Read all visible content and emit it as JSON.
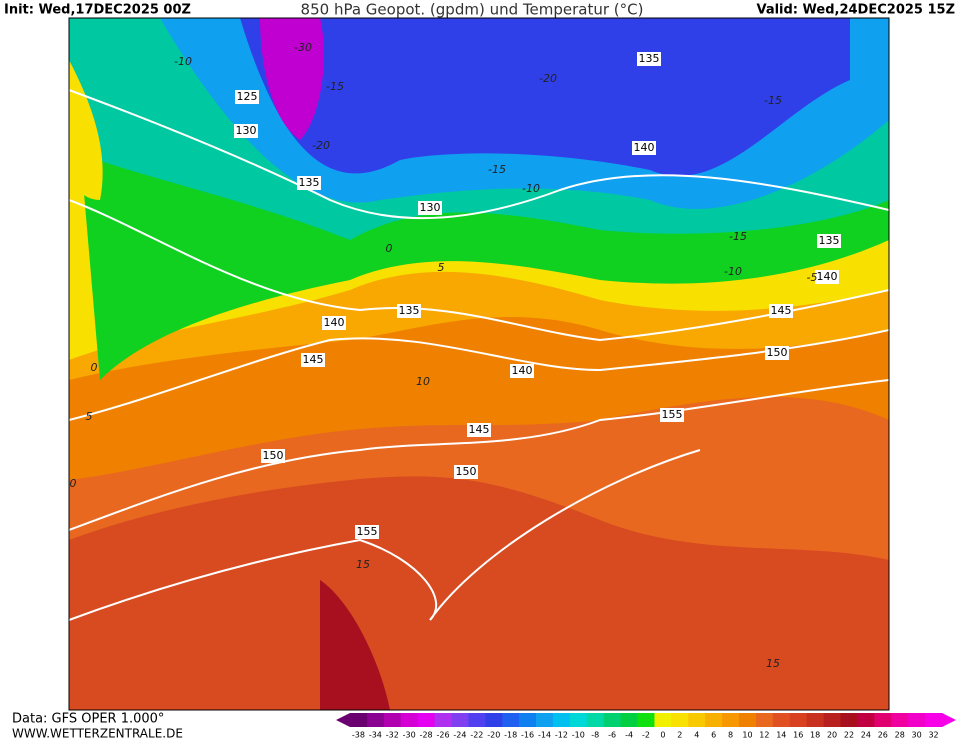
{
  "header": {
    "init": "Init: Wed,17DEC2025 00Z",
    "title": "850 hPa Geopot. (gpdm) und Temperatur (°C)",
    "valid": "Valid: Wed,24DEC2025 15Z"
  },
  "map": {
    "geopotential_labels": [
      125,
      130,
      135,
      130,
      135,
      140,
      135,
      140,
      145,
      150,
      155,
      140,
      135,
      145,
      140,
      145,
      150,
      150,
      155
    ],
    "temperature_labels": [
      -30,
      -10,
      -15,
      -20,
      -15,
      -20,
      -15,
      -10,
      -15,
      -10,
      -5,
      0,
      5,
      0,
      5,
      0,
      10,
      15,
      15
    ]
  },
  "legend": {
    "ticks": [
      -38,
      -34,
      -32,
      -30,
      -28,
      -26,
      -24,
      -22,
      -20,
      -18,
      -16,
      -14,
      -12,
      -10,
      -8,
      -6,
      -4,
      -2,
      0,
      2,
      4,
      6,
      8,
      10,
      12,
      14,
      16,
      18,
      20,
      22,
      24,
      26,
      28,
      30,
      32
    ],
    "colors": [
      "#6a0070",
      "#8a0090",
      "#b000b0",
      "#d400d4",
      "#e400f0",
      "#b030f0",
      "#8040f0",
      "#5040f0",
      "#3040e8",
      "#2060f0",
      "#1080f0",
      "#10a0f0",
      "#00c0f0",
      "#00d8d8",
      "#00d8a8",
      "#00d070",
      "#00d040",
      "#10e010",
      "#f0f000",
      "#f8e000",
      "#f8c800",
      "#f8b000",
      "#f89800",
      "#f08000",
      "#e86820",
      "#e05020",
      "#d84020",
      "#c83020",
      "#b82020",
      "#a81020",
      "#c00040",
      "#e00070",
      "#f000a0",
      "#f000c8",
      "#f800e8"
    ]
  },
  "footer": {
    "source": "Data: GFS OPER 1.000°",
    "site": "WWW.WETTERZENTRALE.DE"
  }
}
